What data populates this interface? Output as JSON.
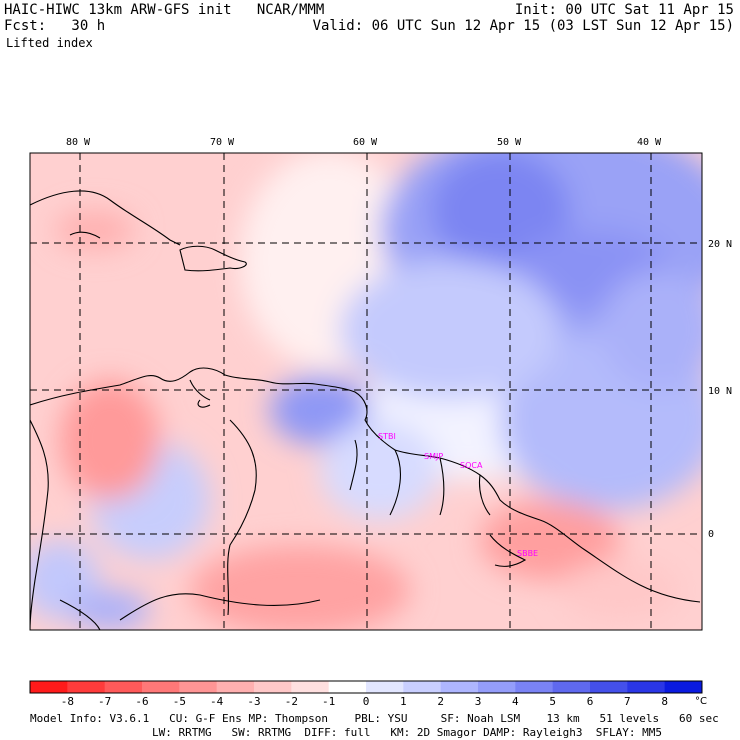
{
  "header": {
    "title": "HAIC-HIWC 13km ARW-GFS init   NCAR/MMM",
    "fcst": "Fcst:   30 h",
    "field": "Lifted index",
    "init": "Init: 00 UTC Sat 11 Apr 15",
    "valid": "Valid: 06 UTC Sun 12 Apr 15 (03 LST Sun 12 Apr 15)"
  },
  "axes": {
    "lon_labels": [
      "80 W",
      "70 W",
      "60 W",
      "50 W",
      "40 W"
    ],
    "lat_labels": [
      "20 N",
      "10 N",
      "0"
    ]
  },
  "stations": [
    "STBI",
    "SMJP",
    "SOCA",
    "SBBE"
  ],
  "colorbar": {
    "unit": "°C",
    "labels": [
      "-8",
      "-7",
      "-6",
      "-5",
      "-4",
      "-3",
      "-2",
      "-1",
      "0",
      "1",
      "2",
      "3",
      "4",
      "5",
      "6",
      "7",
      "8"
    ],
    "colors": [
      "#ff1a1a",
      "#ff3b3b",
      "#ff5a5a",
      "#ff7878",
      "#ff9595",
      "#ffb0b0",
      "#ffc8c8",
      "#ffe0e0",
      "#ffffff",
      "#e2e6ff",
      "#c9cfff",
      "#aeb6ff",
      "#949dfa",
      "#7a83f5",
      "#5f69ef",
      "#4450ea",
      "#2a36e6",
      "#0a1ae0"
    ]
  },
  "footer": {
    "line1": "Model Info: V3.6.1   CU: G-F Ens MP: Thompson    PBL: YSU     SF: Noah LSM    13 km   51 levels   60 sec",
    "line2": "LW: RRTMG   SW: RRTMG  DIFF: full   KM: 2D Smagor DAMP: Rayleigh3  SFLAY: MM5"
  }
}
